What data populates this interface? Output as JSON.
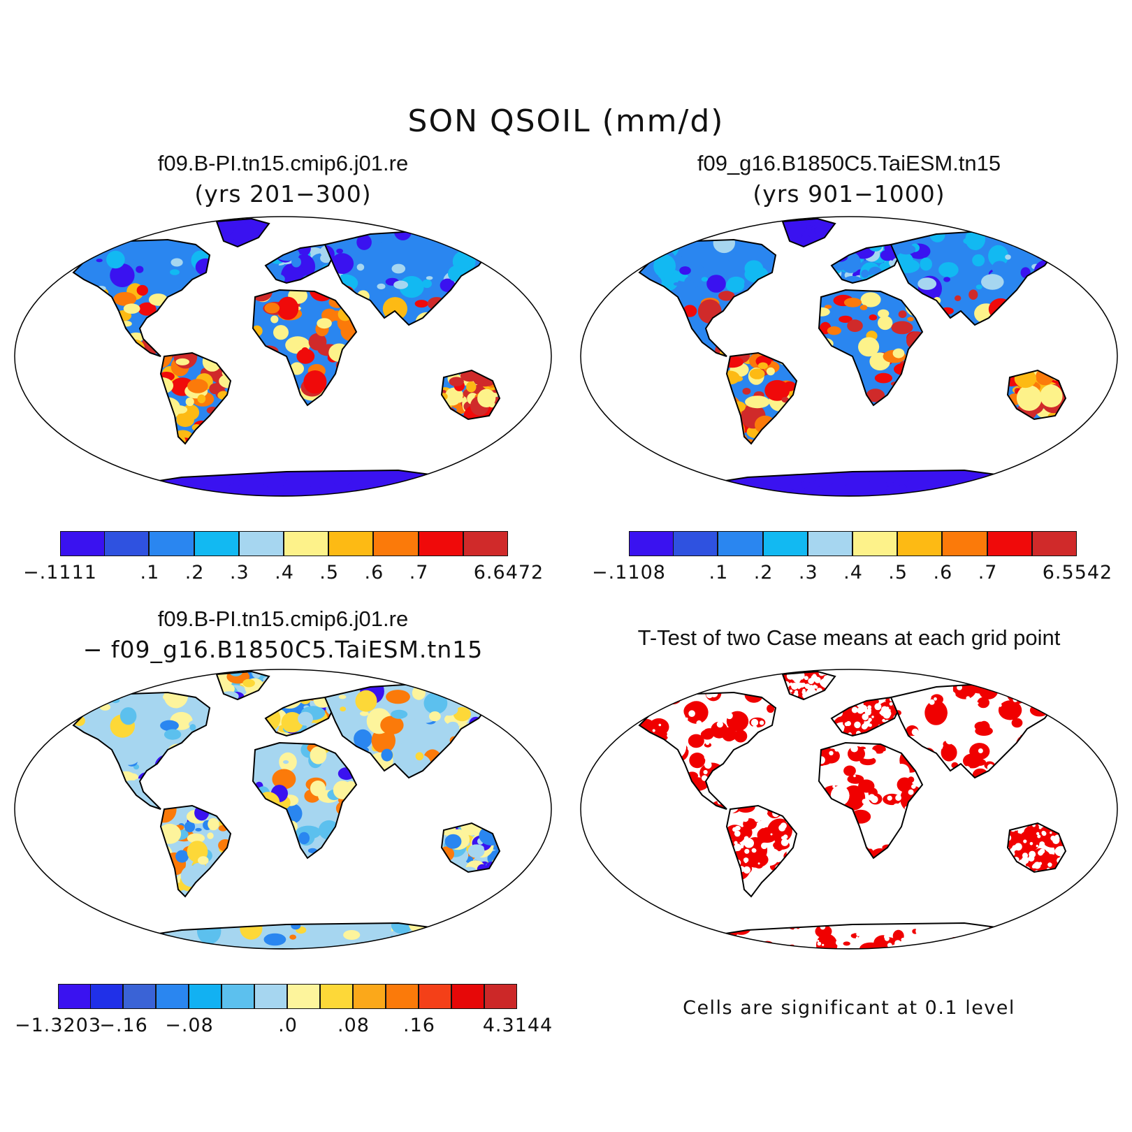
{
  "title": "SON QSOIL (mm/d)",
  "panels": {
    "top_left": {
      "title": "f09.B-PI.tn15.cmip6.j01.re",
      "subtitle": "(yrs 201−300)"
    },
    "top_right": {
      "title": "f09_g16.B1850C5.TaiESM.tn15",
      "subtitle": "(yrs 901−1000)"
    },
    "bottom_left": {
      "title": "f09.B-PI.tn15.cmip6.j01.re",
      "subtitle": "− f09_g16.B1850C5.TaiESM.tn15"
    },
    "bottom_right": {
      "title": "T-Test of two Case means at each grid point",
      "note": "Cells are significant at 0.1 level"
    }
  },
  "colorbars": {
    "top_left": {
      "colors": [
        "#3a12f0",
        "#2f52e0",
        "#2a86f0",
        "#12b9f2",
        "#a6d6f0",
        "#fdf28a",
        "#fdba14",
        "#fb7a0a",
        "#f00a0a",
        "#d02a2a"
      ],
      "labels": [
        "−.1111",
        ".1",
        ".2",
        ".3",
        ".4",
        ".5",
        ".6",
        ".7",
        "6.6472"
      ]
    },
    "top_right": {
      "colors": [
        "#3a12f0",
        "#2f52e0",
        "#2a86f0",
        "#12b9f2",
        "#a6d6f0",
        "#fdf28a",
        "#fdba14",
        "#fb7a0a",
        "#f00a0a",
        "#d02a2a"
      ],
      "labels": [
        "−.1108",
        ".1",
        ".2",
        ".3",
        ".4",
        ".5",
        ".6",
        ".7",
        "6.5542"
      ]
    },
    "bottom_left": {
      "colors": [
        "#3a12f0",
        "#2030e8",
        "#3a63d6",
        "#2a86f0",
        "#12b1f2",
        "#5cc0ee",
        "#a6d6f0",
        "#fdf49c",
        "#fdd838",
        "#fba81a",
        "#fb7a0a",
        "#f44018",
        "#e60808",
        "#cc2828"
      ],
      "labels": [
        "−1.3203",
        "−.16",
        "−.08",
        ".0",
        ".08",
        ".16",
        "4.3144"
      ],
      "label_boundaries": [
        0,
        2,
        4,
        7,
        9,
        11,
        14
      ]
    }
  },
  "map_colors": {
    "deep_blue": "#3a12f0",
    "blue": "#2a86f0",
    "light_blue": "#a6d6f0",
    "yellow": "#fdf28a",
    "orange": "#fb7a0a",
    "red": "#e60808",
    "sig_red": "#f00000"
  }
}
